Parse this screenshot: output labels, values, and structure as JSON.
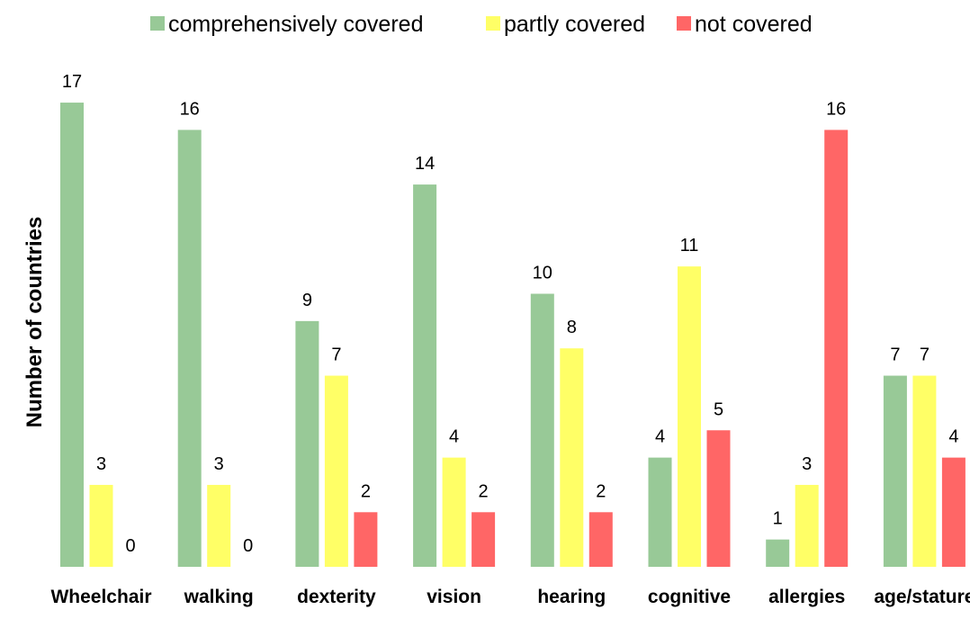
{
  "chart_data": {
    "type": "bar",
    "title": "",
    "xlabel": "",
    "ylabel": "Number of countries",
    "ylim": [
      0,
      17
    ],
    "grid": false,
    "legend_position": "top",
    "categories": [
      "Wheelchair",
      "walking",
      "dexterity",
      "vision",
      "hearing",
      "cognitive",
      "allergies",
      "age/stature"
    ],
    "series": [
      {
        "name": "comprehensively covered",
        "color": "#98c997",
        "values": [
          17,
          16,
          9,
          14,
          10,
          4,
          1,
          7
        ]
      },
      {
        "name": "partly covered",
        "color": "#ffff66",
        "values": [
          3,
          3,
          7,
          4,
          8,
          11,
          3,
          7
        ]
      },
      {
        "name": "not covered",
        "color": "#ff6666",
        "values": [
          0,
          0,
          2,
          2,
          2,
          5,
          16,
          4
        ]
      }
    ]
  }
}
